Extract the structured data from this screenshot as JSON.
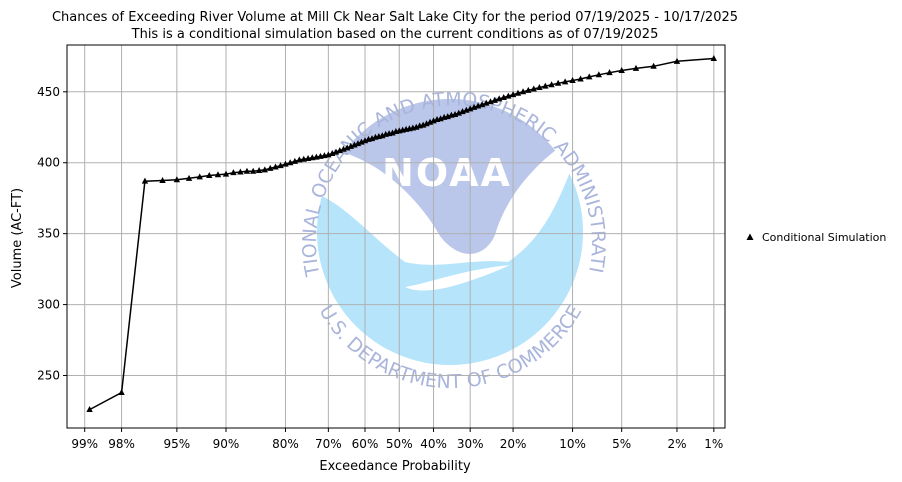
{
  "chart_data": {
    "type": "line",
    "title": "Chances of Exceeding River Volume at Mill Ck Near Salt Lake City for the period 07/19/2025 - 10/17/2025",
    "subtitle": "This is a conditional simulation based on the current conditions as of 07/19/2025",
    "xlabel": "Exceedance Probability",
    "ylabel": "Volume (AC-FT)",
    "x_scale": "normal-probability",
    "x_ticks": [
      "99%",
      "98%",
      "95%",
      "90%",
      "80%",
      "70%",
      "60%",
      "50%",
      "40%",
      "30%",
      "20%",
      "10%",
      "5%",
      "2%",
      "1%"
    ],
    "x_tick_values": [
      99,
      98,
      95,
      90,
      80,
      70,
      60,
      50,
      40,
      30,
      20,
      10,
      5,
      2,
      1
    ],
    "y_ticks": [
      250,
      300,
      350,
      400,
      450
    ],
    "ylim": [
      213,
      483
    ],
    "xlim": [
      99.3,
      0.8
    ],
    "grid": true,
    "legend_position": "right",
    "series": [
      {
        "name": "Conditional Simulation",
        "color": "#000000",
        "marker": "triangle",
        "points": [
          [
            98.9,
            226
          ],
          [
            98.0,
            238
          ],
          [
            97.0,
            387
          ],
          [
            96.0,
            387.5
          ],
          [
            95.0,
            388
          ],
          [
            94.0,
            389
          ],
          [
            93.0,
            390
          ],
          [
            92.0,
            391
          ],
          [
            91.0,
            391.5
          ],
          [
            90.0,
            392
          ],
          [
            89.0,
            393
          ],
          [
            88.0,
            393.5
          ],
          [
            87.0,
            394
          ],
          [
            86.0,
            394
          ],
          [
            85.0,
            394.5
          ],
          [
            84.0,
            395
          ],
          [
            83.0,
            396
          ],
          [
            82.0,
            397
          ],
          [
            81.0,
            398
          ],
          [
            80.0,
            399
          ],
          [
            79.0,
            400
          ],
          [
            78.0,
            401
          ],
          [
            77.0,
            402
          ],
          [
            76.0,
            402.5
          ],
          [
            75.0,
            403
          ],
          [
            74.0,
            403.5
          ],
          [
            73.0,
            404
          ],
          [
            72.0,
            404.5
          ],
          [
            71.0,
            405
          ],
          [
            70.0,
            405.5
          ],
          [
            69.0,
            406.5
          ],
          [
            68.0,
            407.5
          ],
          [
            67.0,
            408.5
          ],
          [
            66.0,
            409.5
          ],
          [
            65.0,
            410.5
          ],
          [
            64.0,
            411.5
          ],
          [
            63.0,
            412.5
          ],
          [
            62.0,
            413.5
          ],
          [
            61.0,
            414.5
          ],
          [
            60.0,
            415.5
          ],
          [
            59.0,
            416.5
          ],
          [
            58.0,
            417
          ],
          [
            57.0,
            418
          ],
          [
            56.0,
            418.5
          ],
          [
            55.0,
            419
          ],
          [
            54.0,
            420
          ],
          [
            53.0,
            420.5
          ],
          [
            52.0,
            421
          ],
          [
            51.0,
            422
          ],
          [
            50.0,
            422.5
          ],
          [
            49.0,
            423
          ],
          [
            48.0,
            423.5
          ],
          [
            47.0,
            424
          ],
          [
            46.0,
            424.5
          ],
          [
            45.0,
            425
          ],
          [
            44.0,
            426
          ],
          [
            43.0,
            426.5
          ],
          [
            42.0,
            427.5
          ],
          [
            41.0,
            428.5
          ],
          [
            40.0,
            429.5
          ],
          [
            39.0,
            430.5
          ],
          [
            38.0,
            431
          ],
          [
            37.0,
            432
          ],
          [
            36.0,
            432.5
          ],
          [
            35.0,
            433.5
          ],
          [
            34.0,
            434
          ],
          [
            33.0,
            435
          ],
          [
            32.0,
            436
          ],
          [
            31.0,
            437
          ],
          [
            30.0,
            438
          ],
          [
            29.0,
            439
          ],
          [
            28.0,
            440
          ],
          [
            27.0,
            441
          ],
          [
            26.0,
            442
          ],
          [
            25.0,
            443
          ],
          [
            24.0,
            444
          ],
          [
            23.0,
            445
          ],
          [
            22.0,
            446
          ],
          [
            21.0,
            447
          ],
          [
            20.0,
            448
          ],
          [
            19.0,
            449
          ],
          [
            18.0,
            450
          ],
          [
            17.0,
            451
          ],
          [
            16.0,
            452
          ],
          [
            15.0,
            453
          ],
          [
            14.0,
            454
          ],
          [
            13.0,
            455
          ],
          [
            12.0,
            456
          ],
          [
            11.0,
            457
          ],
          [
            10.0,
            458
          ],
          [
            9.0,
            459
          ],
          [
            8.0,
            460.5
          ],
          [
            7.0,
            462
          ],
          [
            6.0,
            463.5
          ],
          [
            5.0,
            465
          ],
          [
            4.0,
            466.5
          ],
          [
            3.0,
            468
          ],
          [
            2.0,
            471.5
          ],
          [
            1.0,
            473.5
          ]
        ]
      }
    ]
  },
  "watermark": {
    "top_text": "NATIONAL OCEANIC AND ATMOSPHERIC ADMINISTRATION",
    "bottom_text": "U.S. DEPARTMENT OF COMMERCE",
    "logo_text": "NOAA",
    "colors": {
      "ring_text": "#aab5dc",
      "upper": "#bac6ea",
      "lower": "#b5e4fb"
    }
  }
}
